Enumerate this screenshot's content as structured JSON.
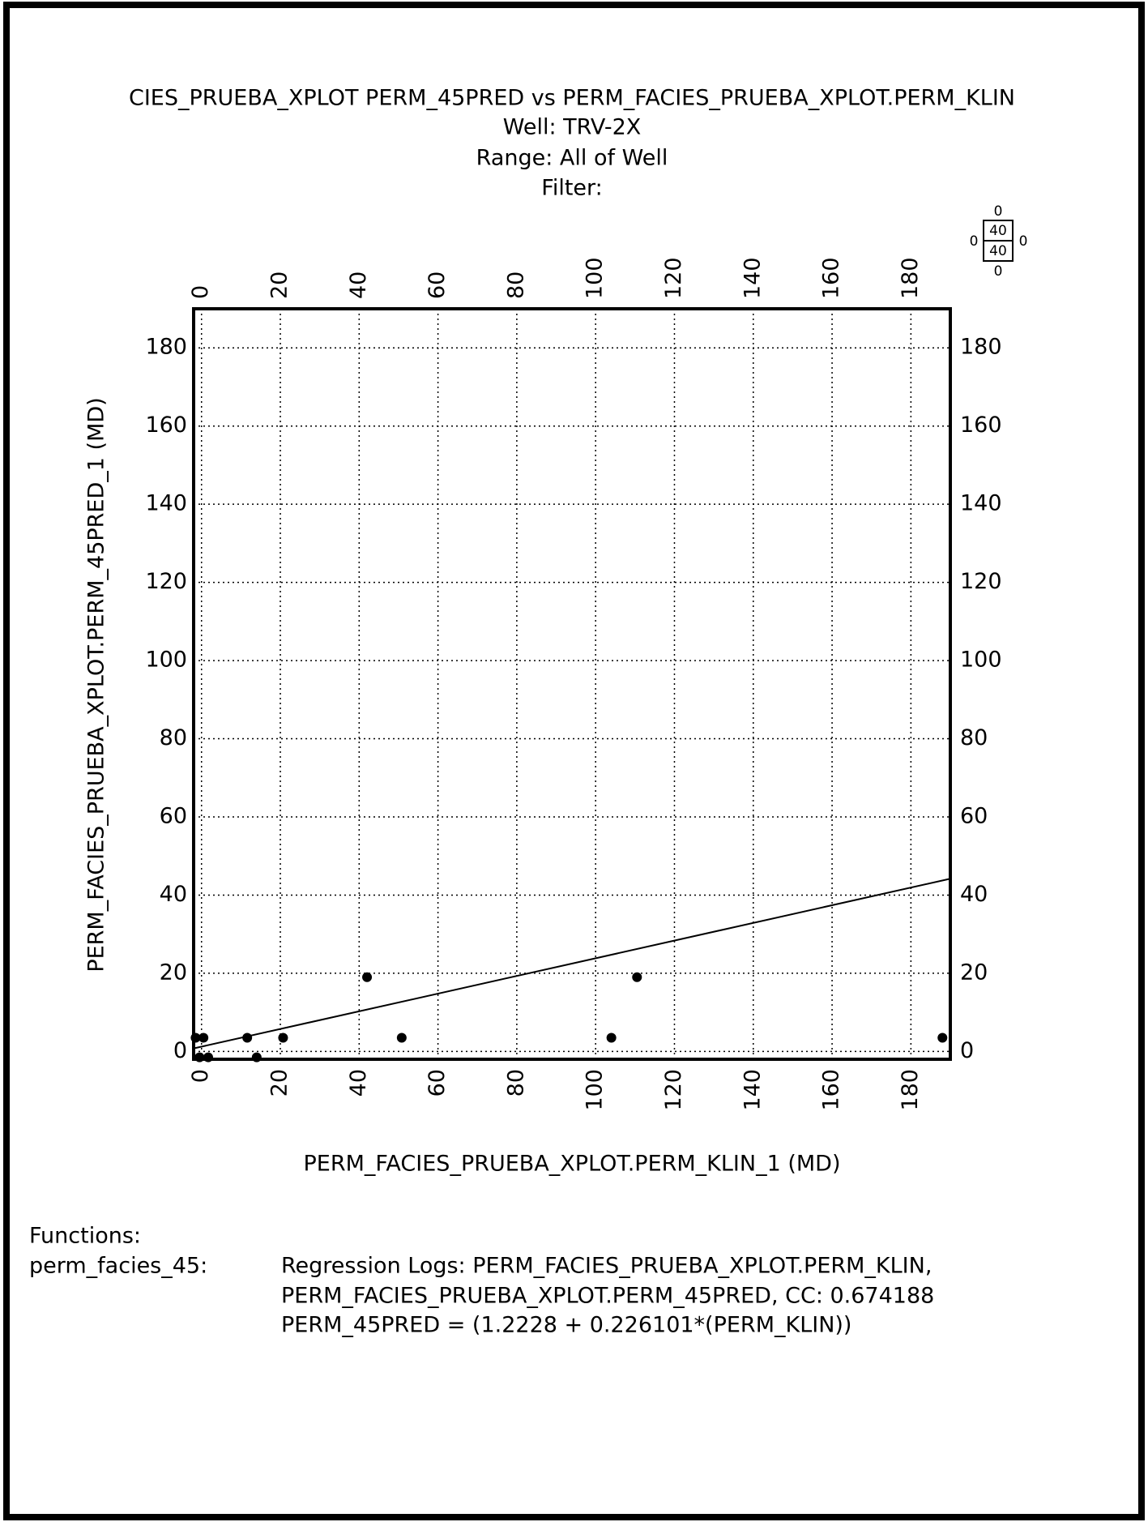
{
  "chart_data": {
    "type": "scatter",
    "title": "CIES_PRUEBA_XPLOT PERM_45PRED vs  PERM_FACIES_PRUEBA_XPLOT.PERM_KLIN",
    "subtitles": [
      "Well: TRV-2X",
      "Range: All of Well",
      "Filter:"
    ],
    "x_label": "PERM_FACIES_PRUEBA_XPLOT.PERM_KLIN_1 (MD)",
    "y_label": "PERM_FACIES_PRUEBA_XPLOT.PERM_45PRED_1 (MD)",
    "xlim": [
      -2,
      190
    ],
    "ylim": [
      -2,
      190
    ],
    "xticks": [
      0,
      20,
      40,
      60,
      80,
      100,
      120,
      140,
      160,
      180
    ],
    "yticks": [
      0,
      20,
      40,
      60,
      80,
      100,
      120,
      140,
      160,
      180
    ],
    "grid": true,
    "series": [
      {
        "color": "#000000",
        "x": [
          -1.5,
          0.5,
          -0.5,
          1.7,
          11.6,
          14,
          20.7,
          42,
          50.8,
          104,
          110.5,
          188
        ],
        "values": [
          3.5,
          3.5,
          -1.5,
          -1.5,
          3.5,
          -1.5,
          3.5,
          19,
          3.5,
          3.5,
          19,
          3.5
        ]
      }
    ],
    "regression": {
      "intercept": 1.2228,
      "slope": 0.226101
    },
    "scale_icon": {
      "top": "0",
      "upper": "40",
      "lower": "40",
      "bottom": "0",
      "left": "0",
      "right": "0"
    },
    "functions": {
      "heading": "Functions:",
      "name": "perm_facies_45:",
      "lines": [
        "Regression Logs: PERM_FACIES_PRUEBA_XPLOT.PERM_KLIN,",
        "PERM_FACIES_PRUEBA_XPLOT.PERM_45PRED, CC: 0.674188",
        "PERM_45PRED = (1.2228 + 0.226101*(PERM_KLIN))"
      ]
    }
  }
}
